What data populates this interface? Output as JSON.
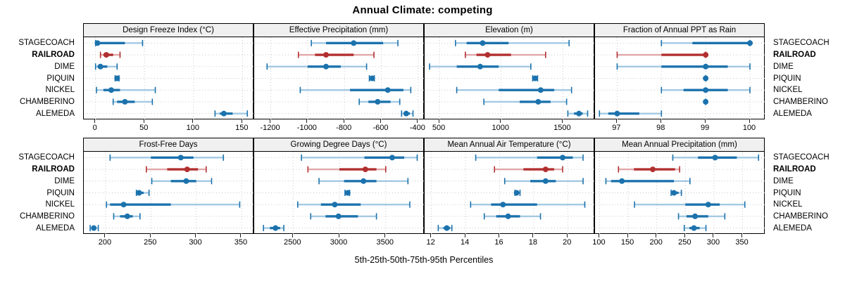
{
  "title": "Annual Climate: competing",
  "footer_xlabel": "5th-25th-50th-75th-95th Percentiles",
  "categories": [
    "STAGECOACH",
    "RAILROAD",
    "DIME",
    "PIQUIN",
    "NICKEL",
    "CHAMBERINO",
    "ALEMEDA"
  ],
  "highlight_category": "RAILROAD",
  "colors": {
    "series_main": "#1b72ad",
    "series_light": "#a3c9e3",
    "highlight_main": "#b22f2f",
    "highlight_light": "#e2a7a7",
    "grid": "#c9c9c9",
    "panel_border": "#000000",
    "strip_background": "#f0f0f0",
    "text": "#000000"
  },
  "chart_data": {
    "type": "scatter",
    "variant": "horizontal percentile interval dot plot (5th-25th-50th-75th-95th)",
    "grid": "dotted",
    "legend": "none",
    "categories_top_to_bottom": [
      "STAGECOACH",
      "RAILROAD",
      "DIME",
      "PIQUIN",
      "NICKEL",
      "CHAMBERINO",
      "ALEMEDA"
    ],
    "panels": [
      {
        "title": "Design Freeze Index (°C)",
        "row": 0,
        "col": 0,
        "xticks": [
          0,
          50,
          100,
          150
        ],
        "xlim": [
          -12,
          162
        ],
        "values": {
          "STAGECOACH": [
            0,
            0,
            2,
            30,
            48
          ],
          "RAILROAD": [
            5,
            8,
            11,
            18,
            25
          ],
          "DIME": [
            0,
            2,
            5,
            12,
            22
          ],
          "PIQUIN": [
            20,
            21,
            22,
            23,
            24
          ],
          "NICKEL": [
            1,
            8,
            16,
            25,
            61
          ],
          "CHAMBERINO": [
            18,
            22,
            30,
            40,
            58
          ],
          "ALEMEDA": [
            122,
            127,
            131,
            140,
            155
          ]
        }
      },
      {
        "title": "Effective Precipitation (mm)",
        "row": 0,
        "col": 1,
        "xticks": [
          -1200,
          -1000,
          -800,
          -600,
          -400
        ],
        "xlim": [
          -1290,
          -365
        ],
        "values": {
          "STAGECOACH": [
            -980,
            -900,
            -750,
            -590,
            -510
          ],
          "RAILROAD": [
            -1050,
            -960,
            -900,
            -750,
            -640
          ],
          "DIME": [
            -1220,
            -1000,
            -900,
            -820,
            -680
          ],
          "PIQUIN": [
            -665,
            -658,
            -650,
            -644,
            -638
          ],
          "NICKEL": [
            -1040,
            -770,
            -565,
            -480,
            -440
          ],
          "CHAMBERINO": [
            -720,
            -670,
            -620,
            -550,
            -500
          ],
          "ALEMEDA": [
            -490,
            -478,
            -465,
            -445,
            -428
          ]
        }
      },
      {
        "title": "Elevation (m)",
        "row": 0,
        "col": 2,
        "xticks": [
          500,
          1000,
          1500
        ],
        "xlim": [
          380,
          1760
        ],
        "values": {
          "STAGECOACH": [
            630,
            720,
            850,
            1060,
            1550
          ],
          "RAILROAD": [
            710,
            800,
            890,
            1080,
            1360
          ],
          "DIME": [
            420,
            640,
            830,
            980,
            1240
          ],
          "PIQUIN": [
            1255,
            1265,
            1275,
            1285,
            1295
          ],
          "NICKEL": [
            640,
            980,
            1320,
            1430,
            1570
          ],
          "CHAMBERINO": [
            860,
            1150,
            1300,
            1400,
            1530
          ],
          "ALEMEDA": [
            1540,
            1590,
            1630,
            1660,
            1700
          ]
        }
      },
      {
        "title": "Fraction of Annual PPT as Rain",
        "row": 0,
        "col": 3,
        "xticks": [
          97,
          98,
          99,
          100
        ],
        "xlim": [
          96.5,
          100.35
        ],
        "values": {
          "STAGECOACH": [
            98,
            98.7,
            100,
            100,
            100
          ],
          "RAILROAD": [
            97,
            98,
            99,
            99,
            99
          ],
          "DIME": [
            97,
            98,
            99,
            99.5,
            100
          ],
          "PIQUIN": [
            99,
            99,
            99,
            99,
            99
          ],
          "NICKEL": [
            98,
            98.5,
            99,
            99.5,
            100
          ],
          "CHAMBERINO": [
            99,
            99,
            99,
            99,
            99
          ],
          "ALEMEDA": [
            96.6,
            96.8,
            97,
            97.5,
            98
          ]
        }
      },
      {
        "title": "Frost-Free Days",
        "row": 1,
        "col": 0,
        "xticks": [
          200,
          250,
          300,
          350
        ],
        "xlim": [
          176,
          364
        ],
        "values": {
          "STAGECOACH": [
            205,
            250,
            283,
            297,
            330
          ],
          "RAILROAD": [
            245,
            268,
            290,
            302,
            311
          ],
          "DIME": [
            251,
            272,
            289,
            300,
            317
          ],
          "PIQUIN": [
            234,
            236,
            237,
            242,
            248
          ],
          "NICKEL": [
            201,
            205,
            220,
            272,
            348
          ],
          "CHAMBERINO": [
            209,
            216,
            224,
            230,
            238
          ],
          "ALEMEDA": [
            183,
            185,
            187,
            190,
            192
          ]
        }
      },
      {
        "title": "Growing Degree Days (°C)",
        "row": 1,
        "col": 1,
        "xticks": [
          2500,
          3000,
          3500
        ],
        "xlim": [
          2080,
          3920
        ],
        "values": {
          "STAGECOACH": [
            2590,
            3270,
            3570,
            3700,
            3840
          ],
          "RAILROAD": [
            2660,
            3000,
            3280,
            3400,
            3500
          ],
          "DIME": [
            2780,
            3050,
            3260,
            3400,
            3740
          ],
          "PIQUIN": [
            3060,
            3075,
            3090,
            3100,
            3110
          ],
          "NICKEL": [
            2550,
            2800,
            2950,
            3230,
            3760
          ],
          "CHAMBERINO": [
            2690,
            2850,
            2990,
            3200,
            3400
          ],
          "ALEMEDA": [
            2180,
            2250,
            2310,
            2360,
            2400
          ]
        }
      },
      {
        "title": "Mean Annual Air Temperature (°C)",
        "row": 1,
        "col": 2,
        "xticks": [
          12,
          14,
          16,
          18,
          20
        ],
        "xlim": [
          11.6,
          21.6
        ],
        "values": {
          "STAGECOACH": [
            14.6,
            18.2,
            19.7,
            20.3,
            20.9
          ],
          "RAILROAD": [
            15.7,
            17.4,
            18.7,
            19.2,
            19.7
          ],
          "DIME": [
            16.3,
            17.8,
            18.7,
            19.3,
            20.9
          ],
          "PIQUIN": [
            16.9,
            17.0,
            17.0,
            17.1,
            17.2
          ],
          "NICKEL": [
            14.3,
            15.5,
            16.2,
            18.2,
            21.0
          ],
          "CHAMBERINO": [
            15.1,
            15.8,
            16.5,
            17.2,
            18.4
          ],
          "ALEMEDA": [
            12.4,
            12.7,
            12.9,
            13.1,
            13.2
          ]
        }
      },
      {
        "title": "Mean Annual Precipitation (mm)",
        "row": 1,
        "col": 3,
        "xticks": [
          100,
          150,
          200,
          250,
          300,
          350
        ],
        "xlim": [
          92,
          390
        ],
        "values": {
          "STAGECOACH": [
            228,
            272,
            302,
            340,
            378
          ],
          "RAILROAD": [
            133,
            160,
            193,
            232,
            240
          ],
          "DIME": [
            111,
            120,
            139,
            230,
            258
          ],
          "PIQUIN": [
            225,
            228,
            230,
            238,
            243
          ],
          "NICKEL": [
            161,
            250,
            290,
            310,
            354
          ],
          "CHAMBERINO": [
            238,
            252,
            267,
            290,
            319
          ],
          "ALEMEDA": [
            248,
            257,
            265,
            275,
            286
          ]
        }
      }
    ]
  }
}
